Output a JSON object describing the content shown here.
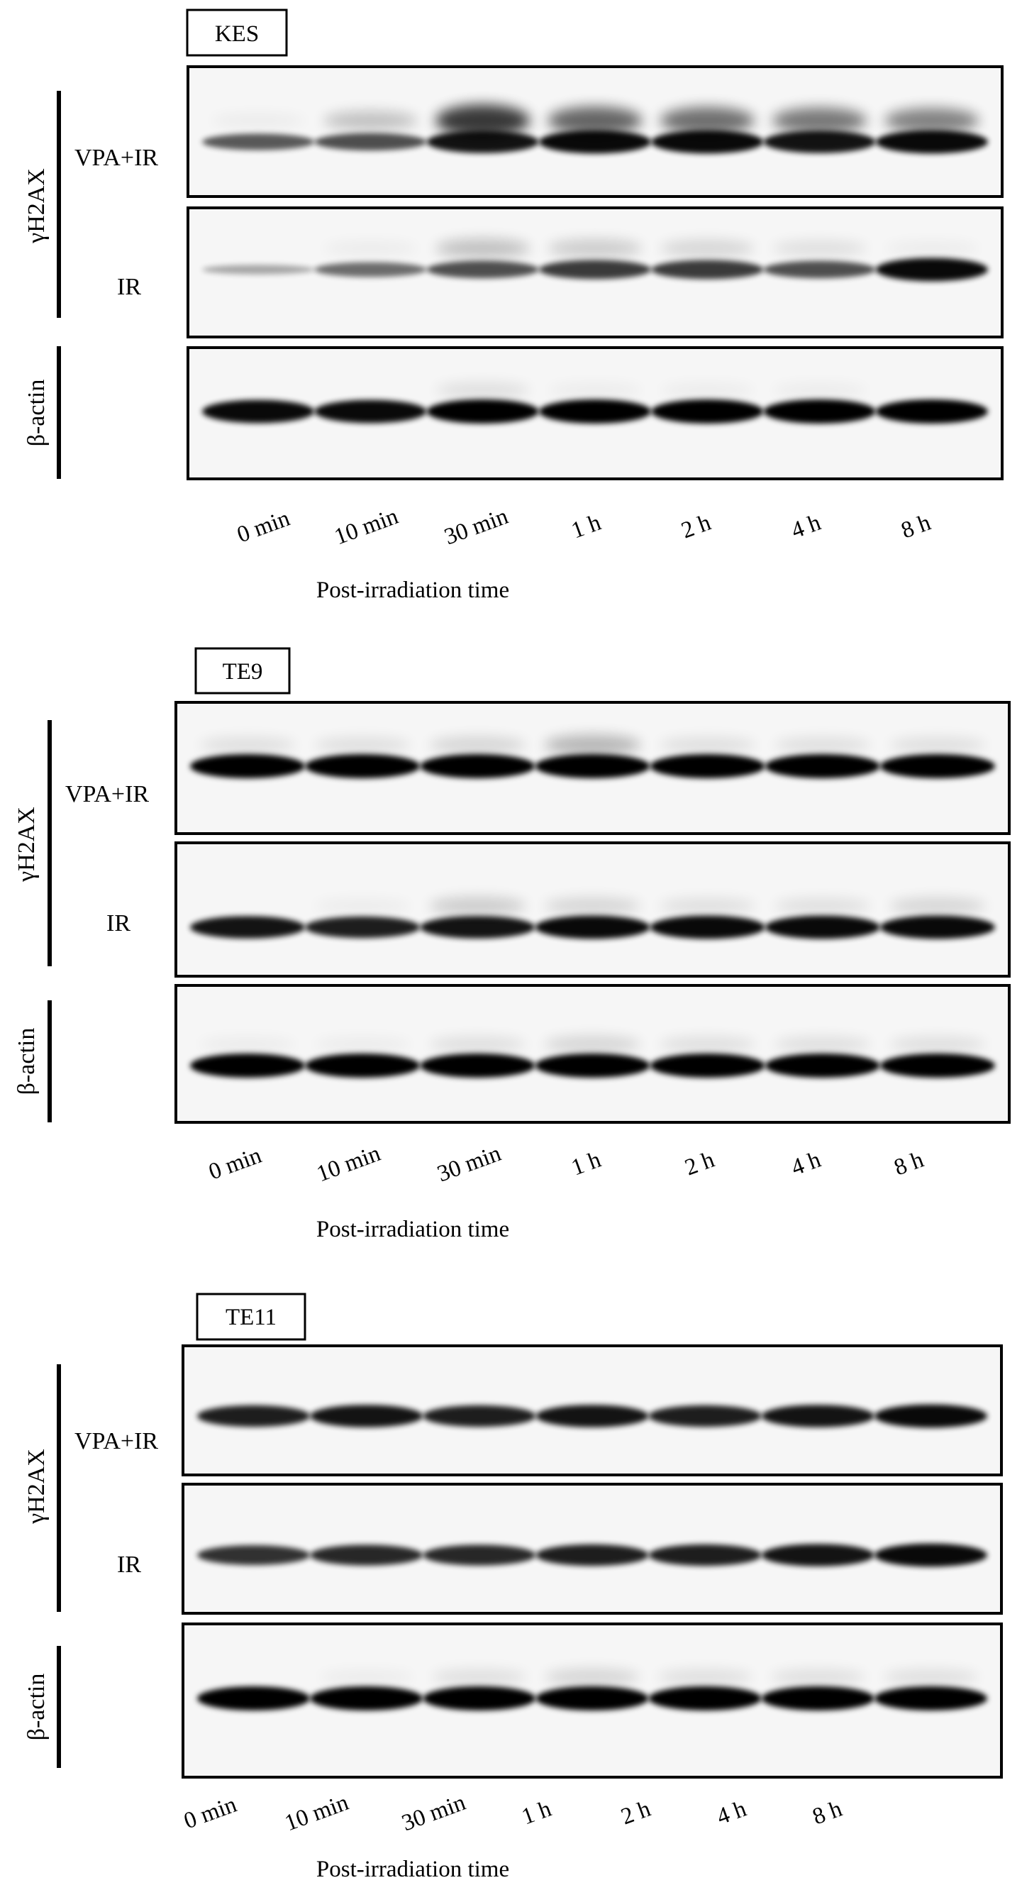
{
  "figure": {
    "panels": [
      {
        "cell_line": "KES",
        "rows": [
          {
            "label": "VPA+IR",
            "intensities": [
              0.55,
              0.6,
              0.9,
              0.95,
              0.95,
              0.9,
              0.95
            ],
            "upper_smear": [
              0.05,
              0.25,
              0.9,
              0.7,
              0.65,
              0.6,
              0.55
            ]
          },
          {
            "label": "IR",
            "intensities": [
              0.15,
              0.45,
              0.6,
              0.7,
              0.7,
              0.6,
              0.95
            ],
            "upper_smear": [
              0,
              0.05,
              0.25,
              0.2,
              0.15,
              0.1,
              0.05
            ]
          },
          {
            "label": "β-actin",
            "intensities": [
              0.95,
              0.95,
              1.0,
              1.0,
              1.0,
              1.0,
              1.0
            ],
            "upper_smear": [
              0,
              0,
              0.1,
              0.05,
              0.05,
              0.05,
              0
            ]
          }
        ],
        "group_label": "γH2AX",
        "lanes": [
          "0 min",
          "10 min",
          "30 min",
          "1 h",
          "2 h",
          "4 h",
          "8 h"
        ],
        "axis_title": "Post-irradiation time"
      },
      {
        "cell_line": "TE9",
        "rows": [
          {
            "label": "VPA+IR",
            "intensities": [
              1.0,
              1.0,
              1.0,
              1.0,
              1.0,
              1.0,
              1.0
            ],
            "upper_smear": [
              0.1,
              0.1,
              0.15,
              0.3,
              0.1,
              0.1,
              0.1
            ]
          },
          {
            "label": "IR",
            "intensities": [
              0.9,
              0.85,
              0.9,
              0.95,
              0.95,
              0.95,
              0.95
            ],
            "upper_smear": [
              0,
              0.05,
              0.2,
              0.15,
              0.1,
              0.1,
              0.15
            ]
          },
          {
            "label": "β-actin",
            "intensities": [
              1.0,
              1.0,
              1.0,
              1.0,
              1.0,
              1.0,
              1.0
            ],
            "upper_smear": [
              0.05,
              0.05,
              0.1,
              0.15,
              0.1,
              0.1,
              0.1
            ]
          }
        ],
        "group_label": "γH2AX",
        "lanes": [
          "0 min",
          "10 min",
          "30 min",
          "1 h",
          "2 h",
          "4 h",
          "8 h"
        ],
        "axis_title": "Post-irradiation time"
      },
      {
        "cell_line": "TE11",
        "rows": [
          {
            "label": "VPA+IR",
            "intensities": [
              0.85,
              0.9,
              0.85,
              0.9,
              0.85,
              0.9,
              0.95
            ],
            "upper_smear": [
              0,
              0,
              0,
              0,
              0,
              0,
              0
            ]
          },
          {
            "label": "IR",
            "intensities": [
              0.75,
              0.8,
              0.8,
              0.85,
              0.85,
              0.9,
              0.95
            ],
            "upper_smear": [
              0,
              0,
              0,
              0,
              0,
              0,
              0
            ]
          },
          {
            "label": "β-actin",
            "intensities": [
              1.0,
              1.0,
              1.0,
              1.0,
              1.0,
              1.0,
              1.0
            ],
            "upper_smear": [
              0,
              0.05,
              0.1,
              0.15,
              0.1,
              0.1,
              0.1
            ]
          }
        ],
        "group_label": "γH2AX",
        "lanes": [
          "0 min",
          "10 min",
          "30 min",
          "1 h",
          "2 h",
          "4 h",
          "8 h"
        ],
        "axis_title": "Post-irradiation time"
      }
    ]
  },
  "colors": {
    "band": "#000000",
    "background": "#ffffff",
    "frame": "#000000"
  }
}
